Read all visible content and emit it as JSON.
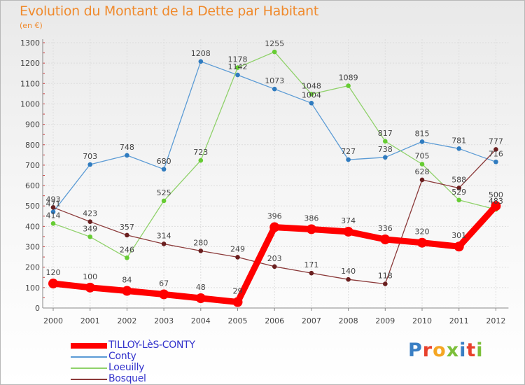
{
  "chart_data": {
    "type": "line",
    "title": "Evolution du Montant de la Dette par Habitant",
    "subtitle": "(en €)",
    "xlabel": "",
    "ylabel": "",
    "ylim": [
      0,
      1300
    ],
    "y_ticks": [
      0,
      100,
      200,
      300,
      400,
      500,
      600,
      700,
      800,
      900,
      1000,
      1100,
      1200,
      1300
    ],
    "grid": true,
    "legend_position": "bottom-left",
    "x": [
      "2000",
      "2001",
      "2002",
      "2003",
      "2004",
      "2005",
      "2006",
      "2007",
      "2008",
      "2009",
      "2010",
      "2011",
      "2012"
    ],
    "series": [
      {
        "name": "TILLOY-LèS-CONTY",
        "color": "#ff0000",
        "emphasis": true,
        "values": [
          120,
          100,
          84,
          67,
          48,
          29,
          396,
          386,
          374,
          336,
          320,
          301,
          500
        ]
      },
      {
        "name": "Conty",
        "color": "#5b9bd5",
        "marker_color": "#2f7bbf",
        "emphasis": false,
        "values": [
          471,
          703,
          748,
          680,
          1208,
          1142,
          1073,
          1004,
          727,
          738,
          815,
          781,
          716
        ]
      },
      {
        "name": "Loeuilly",
        "color": "#8fd16a",
        "marker_color": "#66cc33",
        "emphasis": false,
        "values": [
          414,
          349,
          246,
          525,
          723,
          1178,
          1255,
          1048,
          1089,
          817,
          705,
          529,
          483
        ]
      },
      {
        "name": "Bosquel",
        "color": "#8b3a3a",
        "marker_color": "#6a1f1f",
        "emphasis": false,
        "values": [
          493,
          423,
          357,
          314,
          280,
          249,
          203,
          171,
          140,
          118,
          628,
          588,
          777
        ]
      }
    ]
  },
  "branding": {
    "logo_text": "Proxiti",
    "logo_letters": [
      {
        "ch": "P",
        "color": "#3a7fc4"
      },
      {
        "ch": "r",
        "color": "#e8412c"
      },
      {
        "ch": "o",
        "color": "#f5a623"
      },
      {
        "ch": "x",
        "color": "#7cbf3a"
      },
      {
        "ch": "i",
        "color": "#3a7fc4"
      },
      {
        "ch": "t",
        "color": "#e8412c"
      },
      {
        "ch": "i",
        "color": "#7cbf3a"
      }
    ]
  }
}
